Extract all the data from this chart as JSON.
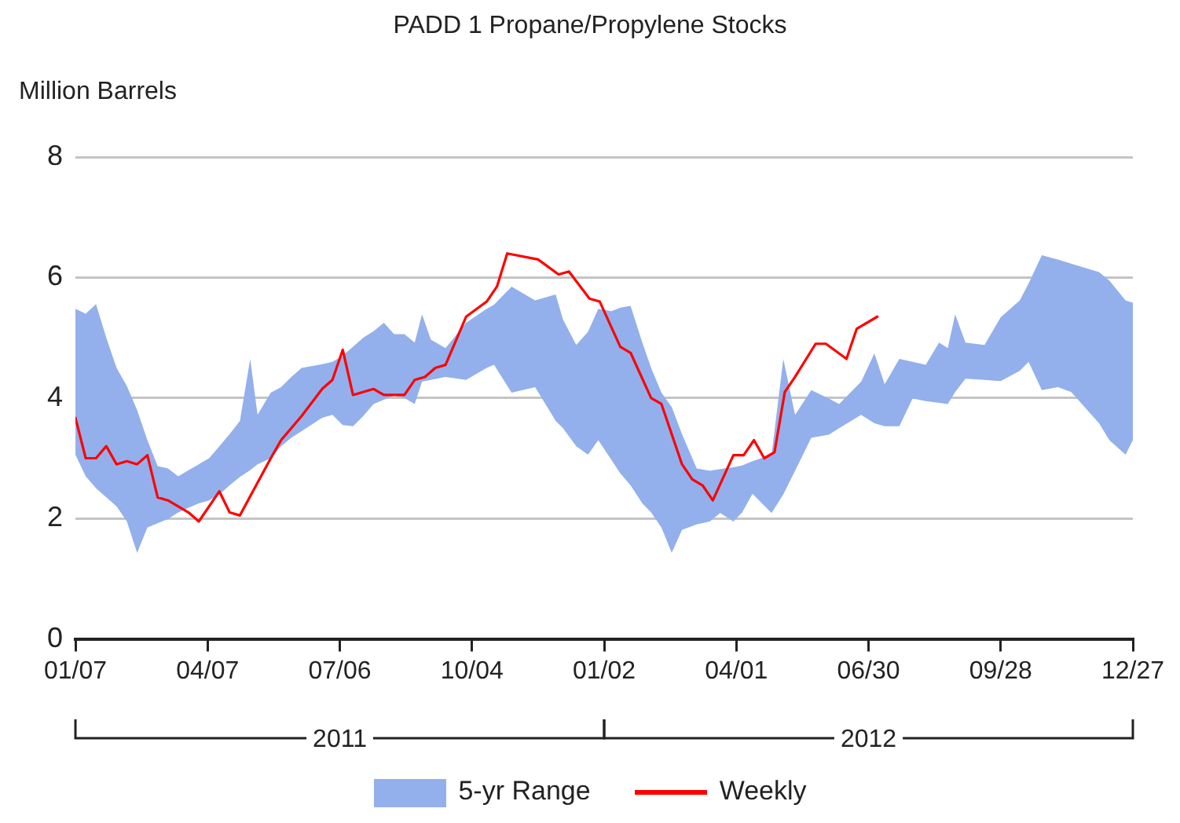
{
  "chart_data": {
    "type": "line",
    "title": "PADD 1 Propane/Propylene Stocks",
    "ylabel": "Million Barrels",
    "xlim": [
      "2011-01-07",
      "2012-12-27"
    ],
    "xticks": [
      {
        "value": "2011-01-07",
        "label": "01/07"
      },
      {
        "value": "2011-04-07",
        "label": "04/07"
      },
      {
        "value": "2011-07-06",
        "label": "07/06"
      },
      {
        "value": "2011-10-04",
        "label": "10/04"
      },
      {
        "value": "2012-01-02",
        "label": "01/02"
      },
      {
        "value": "2012-04-01",
        "label": "04/01"
      },
      {
        "value": "2012-06-30",
        "label": "06/30"
      },
      {
        "value": "2012-09-28",
        "label": "09/28"
      },
      {
        "value": "2012-12-27",
        "label": "12/27"
      }
    ],
    "ylim": [
      0,
      8
    ],
    "yticks": [
      0,
      2,
      4,
      6,
      8
    ],
    "grid": "y",
    "legend": "bottom",
    "annotations": [
      "2011",
      "2012"
    ],
    "series": [
      {
        "name": "5-yr Range",
        "type": "area",
        "color": "#93b0ec",
        "x": [
          "2011-01-07",
          "2011-01-14",
          "2011-01-21",
          "2011-01-28",
          "2011-02-04",
          "2011-02-11",
          "2011-02-18",
          "2011-02-25",
          "2011-03-04",
          "2011-03-11",
          "2011-03-18",
          "2011-03-25",
          "2011-04-01",
          "2011-04-08",
          "2011-04-15",
          "2011-04-22",
          "2011-04-29",
          "2011-05-06",
          "2011-05-11",
          "2011-05-20",
          "2011-05-27",
          "2011-06-03",
          "2011-06-10",
          "2011-06-24",
          "2011-07-01",
          "2011-07-08",
          "2011-07-15",
          "2011-07-22",
          "2011-07-29",
          "2011-08-05",
          "2011-08-12",
          "2011-08-19",
          "2011-08-26",
          "2011-08-31",
          "2011-09-06",
          "2011-09-16",
          "2011-09-30",
          "2011-10-14",
          "2011-10-19",
          "2011-10-31",
          "2011-11-16",
          "2011-11-30",
          "2011-12-05",
          "2011-12-14",
          "2011-12-22",
          "2011-12-29",
          "2012-01-07",
          "2012-01-13",
          "2012-01-20",
          "2012-01-28",
          "2012-02-03",
          "2012-02-10",
          "2012-02-17",
          "2012-02-24",
          "2012-03-05",
          "2012-03-14",
          "2012-03-21",
          "2012-03-30",
          "2012-04-05",
          "2012-04-12",
          "2012-04-25",
          "2012-05-03",
          "2012-05-11",
          "2012-05-22",
          "2012-06-03",
          "2012-06-10",
          "2012-06-25",
          "2012-07-04",
          "2012-07-11",
          "2012-07-21",
          "2012-07-30",
          "2012-08-08",
          "2012-08-17",
          "2012-08-23",
          "2012-08-28",
          "2012-09-04",
          "2012-09-17",
          "2012-09-28",
          "2012-10-11",
          "2012-10-17",
          "2012-10-26",
          "2012-11-06",
          "2012-11-15",
          "2012-11-19",
          "2012-12-04",
          "2012-12-11",
          "2012-12-22",
          "2012-12-27"
        ],
        "values": [
          null,
          null,
          null,
          null,
          null,
          null,
          null,
          null,
          null,
          null,
          null,
          null,
          null,
          null,
          null,
          null,
          null,
          null,
          null,
          null,
          null,
          null,
          null,
          null,
          null,
          null,
          null,
          null,
          null,
          null,
          null,
          null,
          null,
          null,
          null,
          null,
          null,
          null,
          null,
          null,
          null,
          null,
          null,
          null,
          null,
          null,
          null,
          null,
          null,
          null,
          null,
          null,
          null,
          null,
          null,
          null,
          null,
          null,
          null,
          null,
          null,
          null,
          null,
          null,
          null,
          null,
          null,
          null,
          null,
          null,
          null,
          null,
          null,
          null,
          null,
          null,
          null,
          null,
          null,
          null,
          null,
          null,
          null,
          null,
          null,
          null,
          null,
          null
        ],
        "upper": [
          5.48,
          5.4,
          5.56,
          5.0,
          4.5,
          4.2,
          3.8,
          3.3,
          2.87,
          2.83,
          2.7,
          2.8,
          2.9,
          3.0,
          3.2,
          3.4,
          3.62,
          4.65,
          3.72,
          4.09,
          4.18,
          4.35,
          4.5,
          4.56,
          4.6,
          4.7,
          4.85,
          5.0,
          5.11,
          5.25,
          5.06,
          5.06,
          4.92,
          5.39,
          4.97,
          4.83,
          5.25,
          5.48,
          5.55,
          5.85,
          5.62,
          5.72,
          5.3,
          4.88,
          5.1,
          5.48,
          5.44,
          5.5,
          5.53,
          4.92,
          4.5,
          4.09,
          3.85,
          3.4,
          2.83,
          2.79,
          2.82,
          2.85,
          2.88,
          2.95,
          3.06,
          4.65,
          3.72,
          4.13,
          3.99,
          3.9,
          4.27,
          4.74,
          4.23,
          4.65,
          4.6,
          4.55,
          4.92,
          4.83,
          5.39,
          4.92,
          4.88,
          5.34,
          5.62,
          5.9,
          6.37,
          6.3,
          6.23,
          6.2,
          6.09,
          5.95,
          5.62,
          5.58
        ],
        "lower": [
          3.06,
          2.7,
          2.5,
          2.35,
          2.2,
          1.95,
          1.43,
          1.85,
          1.92,
          1.99,
          2.1,
          2.18,
          2.25,
          2.3,
          2.4,
          2.55,
          2.69,
          2.8,
          2.9,
          3.0,
          3.2,
          3.34,
          3.45,
          3.67,
          3.72,
          3.55,
          3.53,
          3.7,
          3.9,
          3.97,
          4.04,
          4.0,
          3.9,
          4.27,
          4.3,
          4.35,
          4.3,
          4.5,
          4.55,
          4.09,
          4.18,
          3.62,
          3.5,
          3.2,
          3.06,
          3.3,
          2.97,
          2.75,
          2.55,
          2.25,
          2.1,
          1.85,
          1.43,
          1.81,
          1.9,
          1.95,
          2.09,
          1.95,
          2.1,
          2.41,
          2.09,
          2.4,
          2.79,
          3.34,
          3.39,
          3.5,
          3.72,
          3.58,
          3.53,
          3.53,
          3.99,
          3.95,
          3.92,
          3.9,
          4.1,
          4.32,
          4.3,
          4.28,
          4.45,
          4.6,
          4.13,
          4.18,
          4.1,
          3.99,
          3.58,
          3.3,
          3.06,
          3.3
        ]
      },
      {
        "name": "Weekly",
        "type": "line",
        "color": "#ff0000",
        "x": [
          "2011-01-07",
          "2011-01-14",
          "2011-01-21",
          "2011-01-28",
          "2011-02-04",
          "2011-02-11",
          "2011-02-18",
          "2011-02-25",
          "2011-03-04",
          "2011-03-11",
          "2011-03-18",
          "2011-03-25",
          "2011-04-01",
          "2011-04-15",
          "2011-04-22",
          "2011-04-29",
          "2011-05-20",
          "2011-05-27",
          "2011-06-10",
          "2011-06-24",
          "2011-07-01",
          "2011-07-08",
          "2011-07-15",
          "2011-07-29",
          "2011-08-05",
          "2011-08-19",
          "2011-08-26",
          "2011-09-02",
          "2011-09-09",
          "2011-09-16",
          "2011-09-30",
          "2011-10-14",
          "2011-10-21",
          "2011-10-28",
          "2011-11-18",
          "2011-12-02",
          "2011-12-09",
          "2011-12-23",
          "2011-12-30",
          "2012-01-13",
          "2012-01-20",
          "2012-02-03",
          "2012-02-10",
          "2012-02-24",
          "2012-03-02",
          "2012-03-09",
          "2012-03-16",
          "2012-03-30",
          "2012-04-06",
          "2012-04-13",
          "2012-04-20",
          "2012-04-27",
          "2012-05-04",
          "2012-05-11",
          "2012-05-25",
          "2012-06-01",
          "2012-06-15",
          "2012-06-22",
          "2012-07-06"
        ],
        "values": [
          3.67,
          3.0,
          3.0,
          3.2,
          2.9,
          2.95,
          2.9,
          3.05,
          2.35,
          2.3,
          2.2,
          2.1,
          1.95,
          2.45,
          2.1,
          2.05,
          3.0,
          3.3,
          3.7,
          4.15,
          4.3,
          4.8,
          4.05,
          4.15,
          4.05,
          4.05,
          4.3,
          4.35,
          4.5,
          4.55,
          5.35,
          5.6,
          5.85,
          6.4,
          6.3,
          6.05,
          6.1,
          5.65,
          5.6,
          4.85,
          4.75,
          4.0,
          3.9,
          2.9,
          2.65,
          2.55,
          2.3,
          3.05,
          3.05,
          3.3,
          3.0,
          3.1,
          4.1,
          4.35,
          4.9,
          4.9,
          4.65,
          5.15,
          5.35
        ]
      }
    ]
  }
}
